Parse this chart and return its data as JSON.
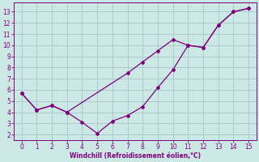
{
  "line1_x": [
    0,
    1,
    2,
    3,
    7,
    8,
    9,
    10,
    11,
    12,
    13,
    14,
    15
  ],
  "line1_y": [
    5.7,
    4.2,
    4.6,
    4.0,
    7.5,
    8.5,
    9.5,
    10.5,
    10.0,
    9.8,
    11.8,
    13.0,
    13.3
  ],
  "line2_x": [
    0,
    1,
    2,
    3,
    4,
    5,
    6,
    7,
    8,
    9,
    10,
    11,
    12,
    13,
    14,
    15
  ],
  "line2_y": [
    5.7,
    4.2,
    4.6,
    4.0,
    3.1,
    2.1,
    3.2,
    3.7,
    4.5,
    6.2,
    7.8,
    10.0,
    9.8,
    11.8,
    13.0,
    13.3
  ],
  "color": "#800080",
  "xlabel": "Windchill (Refroidissement éolien,°C)",
  "xlim": [
    -0.5,
    15.5
  ],
  "ylim": [
    1.5,
    13.8
  ],
  "xticks": [
    0,
    1,
    2,
    3,
    4,
    5,
    6,
    7,
    8,
    9,
    10,
    11,
    12,
    13,
    14,
    15
  ],
  "yticks": [
    2,
    3,
    4,
    5,
    6,
    7,
    8,
    9,
    10,
    11,
    12,
    13
  ],
  "bg_color": "#cce8e4",
  "grid_color": "#aacccc"
}
